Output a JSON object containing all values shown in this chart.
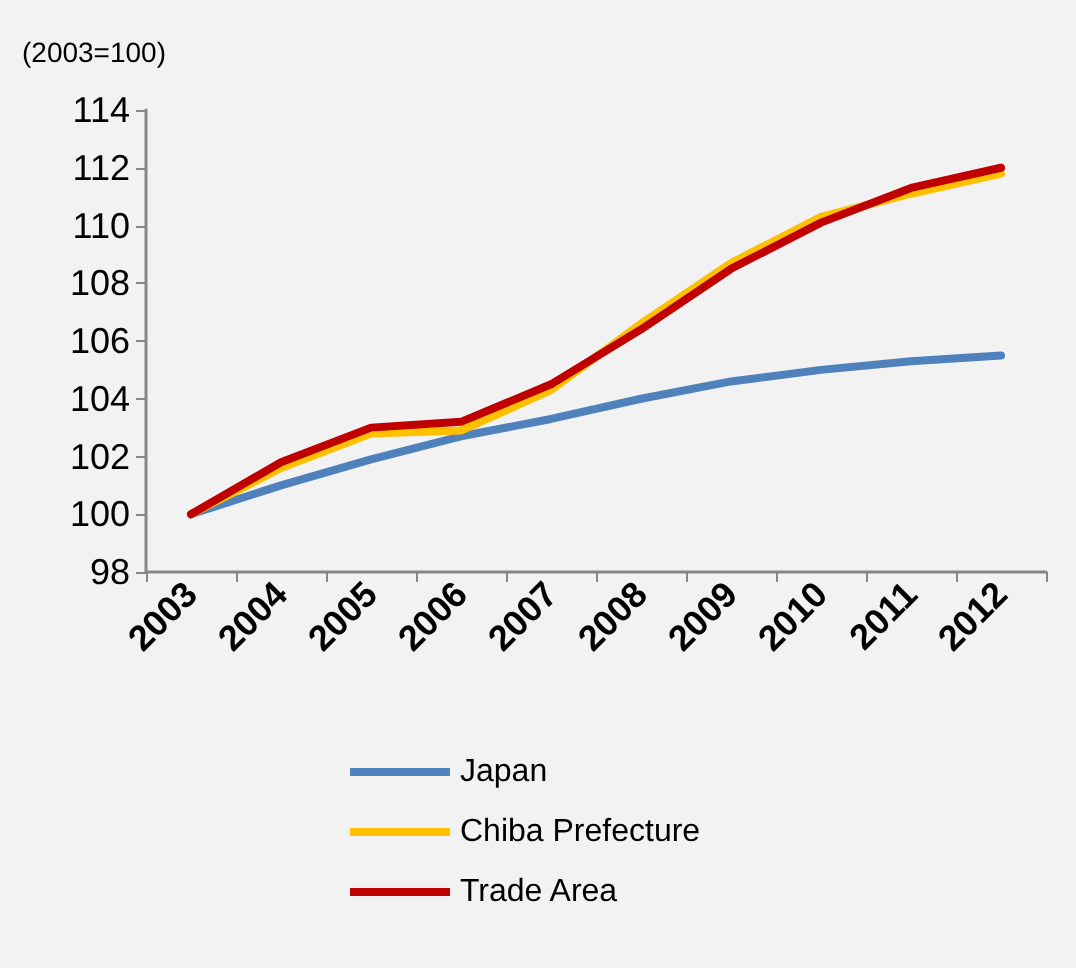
{
  "chart_data": {
    "type": "line",
    "ylabel": "(2003=100)",
    "categories": [
      "2003",
      "2004",
      "2005",
      "2006",
      "2007",
      "2008",
      "2009",
      "2010",
      "2011",
      "2012"
    ],
    "series": [
      {
        "name": "Japan",
        "color": "#4f81bd",
        "values": [
          100,
          101.0,
          101.9,
          102.7,
          103.3,
          104.0,
          104.6,
          105.0,
          105.3,
          105.5
        ]
      },
      {
        "name": "Chiba Prefecture",
        "color": "#ffc000",
        "values": [
          100,
          101.6,
          102.8,
          102.9,
          104.3,
          106.6,
          108.7,
          110.3,
          111.1,
          111.8
        ]
      },
      {
        "name": "Trade Area",
        "color": "#c00000",
        "values": [
          100,
          101.8,
          103.0,
          103.2,
          104.5,
          106.4,
          108.5,
          110.1,
          111.3,
          112.0
        ]
      }
    ],
    "ylim": [
      98,
      114
    ],
    "yticks": [
      98,
      100,
      102,
      104,
      106,
      108,
      110,
      112,
      114
    ],
    "grid": false,
    "legend": "bottom",
    "marker": "none",
    "line_style": "solid"
  }
}
